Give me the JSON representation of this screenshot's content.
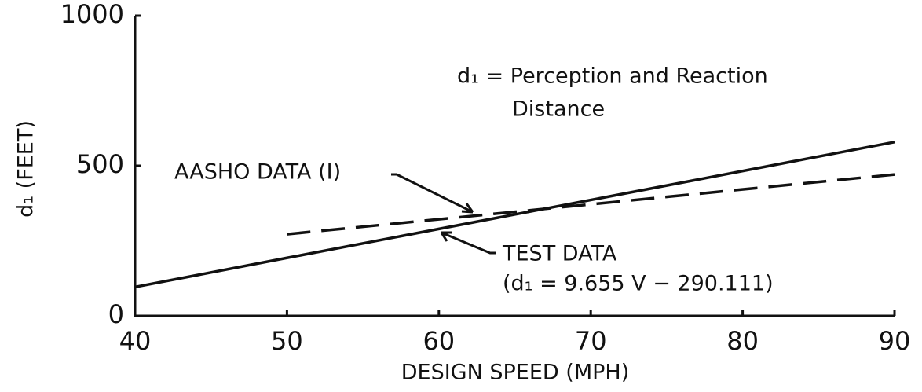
{
  "chart_data": {
    "type": "line",
    "x": [
      40,
      50,
      90
    ],
    "series": [
      {
        "name": "TEST DATA",
        "color": "#111111",
        "dash": false,
        "values": [
          96,
          193,
          579
        ]
      },
      {
        "name": "AASHO DATA (I)",
        "color": "#111111",
        "dash": true,
        "values": [
          null,
          272,
          471
        ]
      }
    ],
    "formula": "(d₁ = 9.655 V − 290.111)",
    "annotation": [
      "d₁ = Perception  and  Reaction",
      "Distance"
    ],
    "xlabel": "DESIGN  SPEED  (MPH)",
    "ylabel": "d₁  (FEET)",
    "xlim": [
      40,
      90
    ],
    "xticks": [
      40,
      50,
      60,
      70,
      80,
      90
    ],
    "ylim": [
      0,
      1000
    ],
    "yticks": [
      0,
      500,
      1000
    ]
  }
}
